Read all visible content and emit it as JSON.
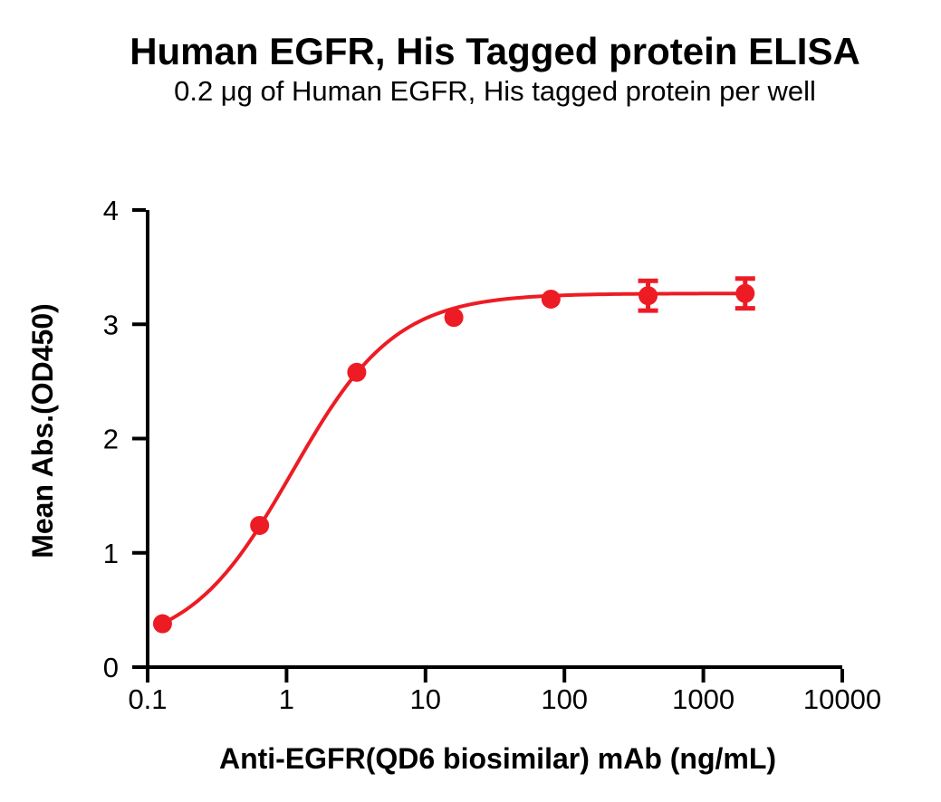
{
  "chart_data": {
    "type": "scatter",
    "title": "Human EGFR, His Tagged protein ELISA",
    "subtitle": "0.2 μg of Human EGFR, His tagged protein per well",
    "xlabel": "Anti-EGFR(QD6 biosimilar) mAb (ng/mL)",
    "ylabel": "Mean Abs.(OD450)",
    "x_scale": "log10",
    "xlim": [
      0.1,
      10000
    ],
    "ylim": [
      0,
      4
    ],
    "x_ticks": [
      0.1,
      1,
      10,
      100,
      1000,
      10000
    ],
    "x_tick_labels": [
      "0.1",
      "1",
      "10",
      "100",
      "1000",
      "10000"
    ],
    "y_ticks": [
      0,
      1,
      2,
      3,
      4
    ],
    "y_tick_labels": [
      "0",
      "1",
      "2",
      "3",
      "4"
    ],
    "grid": false,
    "legend": false,
    "axis_color": "#000000",
    "series": [
      {
        "name": "Anti-EGFR(QD6 biosimilar) mAb",
        "color": "#ED1C24",
        "marker": "circle",
        "x": [
          0.128,
          0.64,
          3.2,
          16,
          80,
          400,
          2000
        ],
        "y": [
          0.38,
          1.24,
          2.58,
          3.06,
          3.22,
          3.25,
          3.27
        ],
        "y_err": [
          0,
          0,
          0,
          0,
          0,
          0.13,
          0.13
        ],
        "fit": {
          "model": "4PL",
          "bottom": 0.15,
          "top": 3.27,
          "ec50": 1.1,
          "hill": 1.17
        }
      }
    ]
  }
}
